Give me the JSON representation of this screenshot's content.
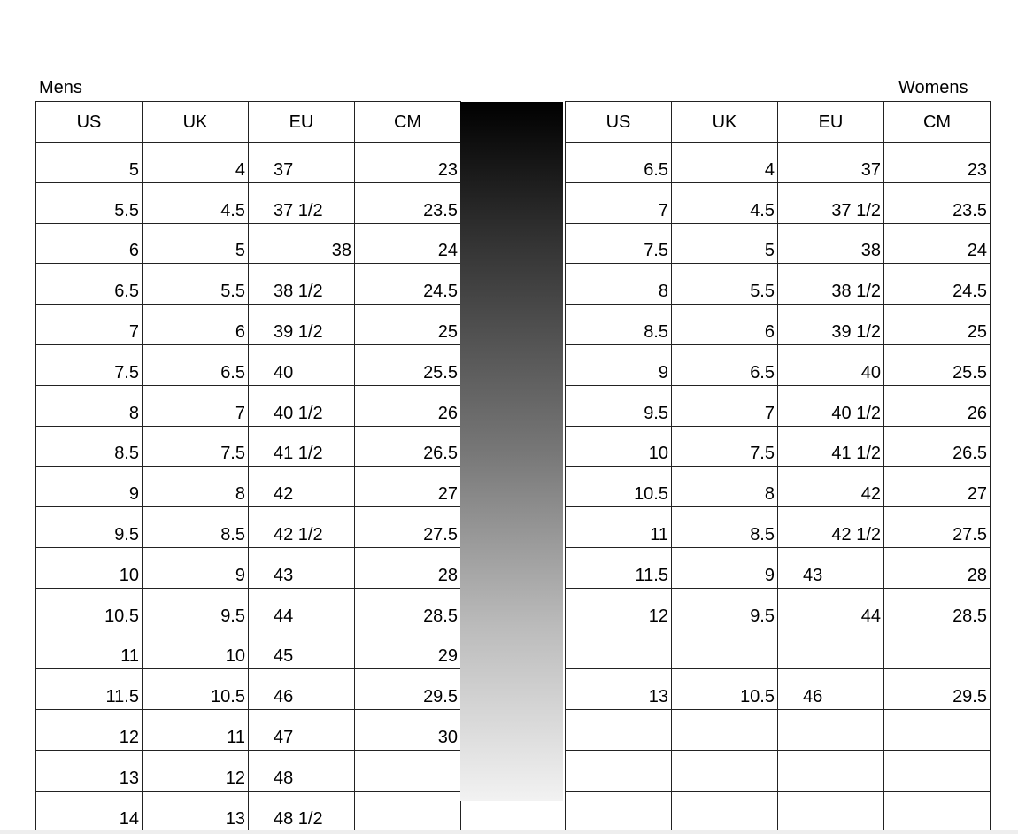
{
  "mens": {
    "title": "Mens",
    "headers": [
      "US",
      "UK",
      "EU",
      "CM"
    ],
    "rows": [
      [
        "5",
        "4",
        "37",
        "23"
      ],
      [
        "5.5",
        "4.5",
        "37 1/2",
        "23.5"
      ],
      [
        "6",
        "5",
        "38",
        "24"
      ],
      [
        "6.5",
        "5.5",
        "38 1/2",
        "24.5"
      ],
      [
        "7",
        "6",
        "39 1/2",
        "25"
      ],
      [
        "7.5",
        "6.5",
        "40",
        "25.5"
      ],
      [
        "8",
        "7",
        "40 1/2",
        "26"
      ],
      [
        "8.5",
        "7.5",
        "41 1/2",
        "26.5"
      ],
      [
        "9",
        "8",
        "42",
        "27"
      ],
      [
        "9.5",
        "8.5",
        "42 1/2",
        "27.5"
      ],
      [
        "10",
        "9",
        "43",
        "28"
      ],
      [
        "10.5",
        "9.5",
        "44",
        "28.5"
      ],
      [
        "11",
        "10",
        "45",
        "29"
      ],
      [
        "11.5",
        "10.5",
        "46",
        "29.5"
      ],
      [
        "12",
        "11",
        "47",
        "30"
      ],
      [
        "13",
        "12",
        "48",
        ""
      ],
      [
        "14",
        "13",
        "48 1/2",
        ""
      ]
    ]
  },
  "womens": {
    "title": "Womens",
    "headers": [
      "US",
      "UK",
      "EU",
      "CM"
    ],
    "rows": [
      [
        "6.5",
        "4",
        "37",
        "23"
      ],
      [
        "7",
        "4.5",
        "37 1/2",
        "23.5"
      ],
      [
        "7.5",
        "5",
        "38",
        "24"
      ],
      [
        "8",
        "5.5",
        "38 1/2",
        "24.5"
      ],
      [
        "8.5",
        "6",
        "39 1/2",
        "25"
      ],
      [
        "9",
        "6.5",
        "40",
        "25.5"
      ],
      [
        "9.5",
        "7",
        "40 1/2",
        "26"
      ],
      [
        "10",
        "7.5",
        "41 1/2",
        "26.5"
      ],
      [
        "10.5",
        "8",
        "42",
        "27"
      ],
      [
        "11",
        "8.5",
        "42 1/2",
        "27.5"
      ],
      [
        "11.5",
        "9",
        "43",
        "28"
      ],
      [
        "12",
        "9.5",
        "44",
        "28.5"
      ],
      [
        "",
        "",
        "",
        ""
      ],
      [
        "13",
        "10.5",
        "46",
        "29.5"
      ],
      [
        "",
        "",
        "",
        ""
      ],
      [
        "",
        "",
        "",
        ""
      ],
      [
        "",
        "",
        "",
        ""
      ]
    ]
  }
}
